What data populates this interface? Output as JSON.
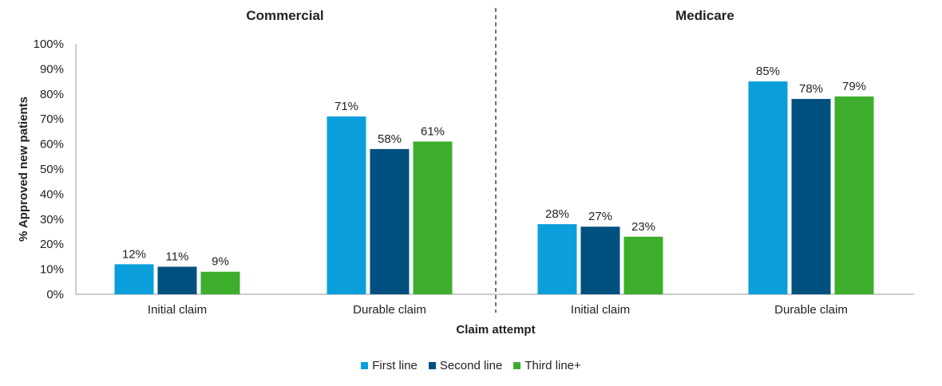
{
  "chart_data": {
    "type": "bar",
    "ylabel": "% Approved new patients",
    "xlabel": "Claim attempt",
    "ylim": [
      0,
      100
    ],
    "yticks": [
      "0%",
      "10%",
      "20%",
      "30%",
      "40%",
      "50%",
      "60%",
      "70%",
      "80%",
      "90%",
      "100%"
    ],
    "grid": false,
    "legend_position": "bottom",
    "series": [
      {
        "name": "First line",
        "color": "#0A9FDA"
      },
      {
        "name": "Second line",
        "color": "#00507F"
      },
      {
        "name": "Third line+",
        "color": "#3DAE2B"
      }
    ],
    "panels": [
      {
        "title": "Commercial",
        "categories": [
          "Initial claim",
          "Durable claim"
        ],
        "values": [
          [
            12,
            11,
            9
          ],
          [
            71,
            58,
            61
          ]
        ],
        "labels": [
          [
            "12%",
            "11%",
            "9%"
          ],
          [
            "71%",
            "58%",
            "61%"
          ]
        ]
      },
      {
        "title": "Medicare",
        "categories": [
          "Initial claim",
          "Durable claim"
        ],
        "values": [
          [
            28,
            27,
            23
          ],
          [
            85,
            78,
            79
          ]
        ],
        "labels": [
          [
            "28%",
            "27%",
            "23%"
          ],
          [
            "85%",
            "78%",
            "79%"
          ]
        ]
      }
    ]
  }
}
